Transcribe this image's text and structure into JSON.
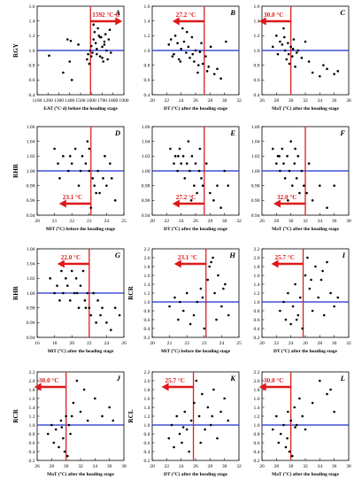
{
  "colors": {
    "threshold_line": "#d92020",
    "reference_line": "#1a2ccc",
    "arrow": "#e01818",
    "annotation_text": "#e01818",
    "points": "#000000",
    "axis": "#000000"
  },
  "chart_data": [
    {
      "panel": "A",
      "type": "scatter",
      "xlabel": "EAT (°C·d) before the heading stage",
      "ylabel": "RGY",
      "xlim": [
        1100,
        1900
      ],
      "ylim": [
        0.4,
        1.6
      ],
      "xticks": [
        1100,
        1200,
        1300,
        1400,
        1500,
        1600,
        1700,
        1800,
        1900
      ],
      "yticks": [
        0.4,
        0.6,
        0.8,
        1.0,
        1.2,
        1.4,
        1.6
      ],
      "hline": 1.0,
      "vline": 1592,
      "annotation": "1592 °C·d",
      "arrow_direction": "right",
      "x": [
        1210,
        1340,
        1380,
        1400,
        1410,
        1420,
        1480,
        1560,
        1570,
        1580,
        1590,
        1600,
        1610,
        1620,
        1630,
        1640,
        1650,
        1660,
        1670,
        1680,
        1690,
        1700,
        1710,
        1720,
        1730,
        1740,
        1750,
        1760,
        1770,
        1780,
        1600,
        1620,
        1650,
        1700,
        1720,
        1680
      ],
      "y": [
        0.93,
        0.7,
        1.15,
        0.85,
        1.13,
        0.6,
        1.08,
        0.88,
        0.95,
        0.82,
        1.0,
        1.06,
        0.97,
        1.15,
        1.25,
        1.1,
        0.95,
        1.3,
        1.2,
        0.92,
        1.18,
        1.05,
        0.85,
        1.12,
        1.22,
        1.0,
        0.88,
        1.15,
        1.28,
        0.97,
        0.92,
        1.35,
        1.02,
        0.9,
        1.08,
        1.18
      ]
    },
    {
      "panel": "B",
      "type": "scatter",
      "xlabel": "DT (°C) after the heading stage",
      "ylabel": "",
      "xlim": [
        20,
        32
      ],
      "ylim": [
        0.4,
        1.6
      ],
      "xticks": [
        20,
        22,
        24,
        26,
        28,
        30,
        32
      ],
      "yticks": [
        0.4,
        0.6,
        0.8,
        1.0,
        1.2,
        1.4,
        1.6
      ],
      "hline": 1.0,
      "vline": 27.2,
      "annotation": "27.2 °C",
      "arrow_direction": "left",
      "x": [
        22.3,
        22.6,
        23.0,
        23.2,
        23.5,
        23.7,
        24.0,
        24.2,
        24.4,
        24.7,
        25.0,
        25.2,
        25.5,
        25.8,
        26.0,
        26.3,
        26.6,
        26.8,
        27.0,
        27.4,
        27.8,
        28.1,
        28.6,
        29.0,
        29.5,
        30.2,
        22.8,
        23.9,
        24.8,
        25.6,
        26.4,
        27.6
      ],
      "y": [
        1.08,
        1.15,
        0.95,
        1.2,
        1.1,
        0.88,
        1.02,
        1.3,
        1.12,
        0.97,
        1.05,
        0.9,
        1.18,
        0.85,
        1.0,
        0.7,
        0.98,
        1.1,
        0.82,
        0.92,
        0.78,
        1.05,
        0.68,
        0.75,
        0.62,
        1.12,
        0.92,
        0.85,
        1.25,
        0.95,
        0.8,
        0.72
      ]
    },
    {
      "panel": "C",
      "type": "scatter",
      "xlabel": "MaT (°C) after the heading stage",
      "ylabel": "",
      "xlim": [
        26,
        38
      ],
      "ylim": [
        0.4,
        1.6
      ],
      "xticks": [
        26,
        28,
        30,
        32,
        34,
        36,
        38
      ],
      "yticks": [
        0.4,
        0.6,
        0.8,
        1.0,
        1.2,
        1.4,
        1.6
      ],
      "hline": 1.0,
      "vline": 30.0,
      "annotation": "30.0 °C",
      "arrow_direction": "left",
      "x": [
        27.5,
        28.0,
        28.2,
        28.5,
        28.8,
        29.0,
        29.2,
        29.4,
        29.6,
        29.8,
        30.0,
        30.2,
        30.4,
        30.6,
        30.8,
        31.0,
        31.5,
        32.0,
        32.5,
        33.0,
        34.0,
        34.5,
        35.0,
        36.0,
        36.5,
        29.1,
        29.7,
        30.3
      ],
      "y": [
        1.05,
        1.2,
        0.95,
        1.12,
        1.08,
        1.3,
        1.0,
        0.88,
        1.1,
        0.82,
        1.05,
        0.92,
        1.15,
        0.78,
        0.97,
        1.0,
        0.9,
        1.12,
        0.85,
        0.7,
        0.65,
        0.8,
        0.75,
        0.68,
        0.72,
        1.18,
        0.95,
        1.02
      ]
    },
    {
      "panel": "D",
      "type": "scatter",
      "xlabel": "MiT (°C) before the heading stage",
      "ylabel": "RHR",
      "xlim": [
        20,
        25
      ],
      "ylim": [
        0.94,
        1.06
      ],
      "xticks": [
        20,
        21,
        22,
        23,
        24,
        25
      ],
      "yticks": [
        0.94,
        0.96,
        0.98,
        1.0,
        1.02,
        1.04,
        1.06
      ],
      "hline": 1.0,
      "vline": 23.1,
      "annotation": "23.1 °C",
      "arrow_direction": "left",
      "x": [
        21.0,
        21.2,
        21.5,
        21.8,
        22.0,
        22.2,
        22.5,
        22.6,
        22.8,
        22.9,
        23.0,
        23.0,
        23.2,
        23.3,
        23.5,
        23.6,
        23.8,
        24.0,
        24.2,
        24.5,
        21.3,
        21.9,
        22.4,
        23.1,
        23.4,
        23.9,
        24.3
      ],
      "y": [
        1.03,
        1.01,
        1.02,
        1.0,
        1.01,
        1.03,
        1.0,
        1.02,
        1.01,
        1.04,
        1.0,
        1.03,
        0.99,
        0.98,
        1.0,
        0.97,
        0.99,
        0.98,
        1.01,
        0.96,
        0.99,
        1.02,
        0.98,
        0.95,
        0.97,
        1.02,
        0.99
      ]
    },
    {
      "panel": "E",
      "type": "scatter",
      "xlabel": "DT (°C) after the heading stage",
      "ylabel": "",
      "xlim": [
        20,
        32
      ],
      "ylim": [
        0.94,
        1.06
      ],
      "xticks": [
        20,
        22,
        24,
        26,
        28,
        30,
        32
      ],
      "yticks": [
        0.94,
        0.96,
        0.98,
        1.0,
        1.02,
        1.04,
        1.06
      ],
      "hline": 1.0,
      "vline": 27.2,
      "annotation": "27.2 °C",
      "arrow_direction": "left",
      "x": [
        22.5,
        23.0,
        23.2,
        23.5,
        23.8,
        24.0,
        24.3,
        24.5,
        24.8,
        25.0,
        25.2,
        25.5,
        25.8,
        26.0,
        26.2,
        26.5,
        26.8,
        27.0,
        27.5,
        28.0,
        28.5,
        29.0,
        29.5,
        30.0,
        30.5,
        23.6,
        25.4,
        26.6
      ],
      "y": [
        1.03,
        1.01,
        1.02,
        1.0,
        1.03,
        1.01,
        1.02,
        0.99,
        1.01,
        1.04,
        1.0,
        1.02,
        0.98,
        1.01,
        0.97,
        1.0,
        0.99,
        0.98,
        1.01,
        0.97,
        0.96,
        0.98,
        0.95,
        1.0,
        0.98,
        1.02,
        0.96,
        1.03
      ]
    },
    {
      "panel": "F",
      "type": "scatter",
      "xlabel": "MaT (°C) after the heading stage",
      "ylabel": "",
      "xlim": [
        26,
        38
      ],
      "ylim": [
        0.94,
        1.06
      ],
      "xticks": [
        26,
        28,
        30,
        32,
        34,
        36,
        38
      ],
      "yticks": [
        0.94,
        0.96,
        0.98,
        1.0,
        1.02,
        1.04,
        1.06
      ],
      "hline": 1.0,
      "vline": 32.0,
      "annotation": "32.0 °C",
      "arrow_direction": "left",
      "x": [
        27.5,
        28.0,
        28.2,
        28.5,
        28.8,
        29.0,
        29.2,
        29.5,
        29.8,
        30.0,
        30.2,
        30.5,
        30.8,
        31.0,
        31.2,
        31.5,
        31.8,
        32.2,
        32.5,
        33.0,
        34.0,
        35.0,
        36.0,
        28.4,
        29.6,
        30.6
      ],
      "y": [
        1.03,
        1.01,
        1.02,
        1.0,
        1.03,
        1.01,
        0.99,
        1.02,
        1.0,
        1.04,
        0.98,
        1.01,
        0.99,
        1.02,
        0.97,
        1.0,
        0.98,
        0.97,
        1.01,
        0.96,
        0.98,
        0.95,
        0.98,
        1.02,
        0.96,
        1.03
      ]
    },
    {
      "panel": "G",
      "type": "scatter",
      "xlabel": "MiT (°C) after the heading stage",
      "ylabel": "RHR",
      "xlim": [
        16,
        26
      ],
      "ylim": [
        0.94,
        1.06
      ],
      "xticks": [
        16,
        18,
        20,
        22,
        24,
        26
      ],
      "yticks": [
        0.94,
        0.96,
        0.98,
        1.0,
        1.02,
        1.04,
        1.06
      ],
      "hline": 1.0,
      "vline": 22.0,
      "annotation": "22.0 °C",
      "arrow_direction": "left",
      "x": [
        17.5,
        18.0,
        18.3,
        18.8,
        19.0,
        19.3,
        19.5,
        19.8,
        20.0,
        20.3,
        20.5,
        20.8,
        21.0,
        21.3,
        21.5,
        21.8,
        22.0,
        22.2,
        22.5,
        22.8,
        23.0,
        23.3,
        23.5,
        24.0,
        24.5,
        25.0,
        25.5,
        18.6,
        20.6,
        21.6
      ],
      "y": [
        1.02,
        1.0,
        1.01,
        1.03,
        1.0,
        1.02,
        1.01,
        0.99,
        1.03,
        1.0,
        1.02,
        0.98,
        1.01,
        1.03,
        0.99,
        1.0,
        0.98,
        0.97,
        1.0,
        0.96,
        0.99,
        0.97,
        0.98,
        0.96,
        0.95,
        0.98,
        0.97,
        0.99,
        1.0,
        0.98
      ]
    },
    {
      "panel": "H",
      "type": "scatter",
      "xlabel": "MiT (°C) before the heading stage",
      "ylabel": "RCR",
      "xlim": [
        20,
        25
      ],
      "ylim": [
        0.2,
        2.2
      ],
      "xticks": [
        20,
        21,
        22,
        23,
        24,
        25
      ],
      "yticks": [
        0.2,
        0.4,
        0.6,
        0.8,
        1.0,
        1.2,
        1.4,
        1.6,
        1.8,
        2.0,
        2.2
      ],
      "hline": 1.0,
      "vline": 23.1,
      "annotation": "23.1 °C",
      "arrow_direction": "left",
      "x": [
        21.0,
        21.3,
        21.5,
        21.8,
        22.0,
        22.2,
        22.4,
        22.6,
        22.8,
        23.0,
        23.2,
        23.3,
        23.5,
        23.6,
        23.8,
        24.0,
        24.2,
        24.4,
        22.9,
        23.4,
        21.6,
        23.7,
        24.1
      ],
      "y": [
        0.9,
        1.1,
        0.6,
        0.8,
        1.2,
        0.5,
        0.7,
        1.0,
        1.3,
        0.4,
        1.5,
        1.8,
        2.0,
        1.2,
        1.6,
        0.9,
        1.4,
        0.7,
        1.1,
        1.9,
        1.0,
        0.6,
        1.3
      ]
    },
    {
      "panel": "I",
      "type": "scatter",
      "xlabel": "DT (°C) after the heading stage",
      "ylabel": "",
      "xlim": [
        20,
        32
      ],
      "ylim": [
        0.2,
        2.2
      ],
      "xticks": [
        20,
        22,
        24,
        26,
        28,
        30,
        32
      ],
      "yticks": [
        0.2,
        0.4,
        0.6,
        0.8,
        1.0,
        1.2,
        1.4,
        1.6,
        1.8,
        2.0,
        2.2
      ],
      "hline": 1.0,
      "vline": 25.7,
      "annotation": "25.7 °C",
      "arrow_direction": "left",
      "x": [
        22.5,
        23.0,
        23.3,
        23.6,
        24.0,
        24.3,
        24.6,
        25.0,
        25.3,
        25.6,
        26.0,
        26.3,
        26.6,
        27.0,
        27.4,
        27.8,
        28.2,
        28.6,
        29.0,
        29.5,
        30.0,
        30.5,
        24.8,
        26.8,
        28.4
      ],
      "y": [
        0.8,
        1.0,
        0.6,
        1.2,
        0.5,
        0.9,
        1.4,
        0.7,
        1.1,
        0.4,
        1.6,
        2.0,
        1.3,
        0.8,
        1.8,
        1.1,
        1.5,
        0.7,
        1.9,
        1.2,
        0.9,
        1.1,
        0.6,
        1.5,
        1.7
      ]
    },
    {
      "panel": "J",
      "type": "scatter",
      "xlabel": "MaT (°C) after the heading stage",
      "ylabel": "RCR",
      "xlim": [
        26,
        38
      ],
      "ylim": [
        0.2,
        2.2
      ],
      "xticks": [
        26,
        28,
        30,
        32,
        34,
        36,
        38
      ],
      "yticks": [
        0.2,
        0.4,
        0.6,
        0.8,
        1.0,
        1.2,
        1.4,
        1.6,
        1.8,
        2.0,
        2.2
      ],
      "hline": 1.0,
      "vline": 30.0,
      "annotation": "30.0 °C",
      "arrow_direction": "left",
      "x": [
        27.5,
        28.0,
        28.3,
        28.6,
        29.0,
        29.3,
        29.6,
        29.8,
        30.0,
        30.2,
        30.4,
        30.6,
        31.0,
        31.5,
        32.0,
        32.5,
        33.0,
        34.0,
        35.0,
        36.0,
        36.5,
        29.4,
        30.8
      ],
      "y": [
        0.8,
        1.0,
        0.6,
        0.9,
        0.5,
        1.1,
        0.7,
        0.4,
        1.2,
        0.3,
        1.0,
        0.8,
        1.5,
        2.0,
        1.3,
        1.8,
        1.1,
        1.6,
        1.2,
        1.4,
        1.1,
        0.95,
        1.2
      ]
    },
    {
      "panel": "K",
      "type": "scatter",
      "xlabel": "DT (°C) after the heading stage",
      "ylabel": "RCL",
      "xlim": [
        20,
        32
      ],
      "ylim": [
        0.2,
        2.2
      ],
      "xticks": [
        20,
        22,
        24,
        26,
        28,
        30,
        32
      ],
      "yticks": [
        0.2,
        0.4,
        0.6,
        0.8,
        1.0,
        1.2,
        1.4,
        1.6,
        1.8,
        2.0,
        2.2
      ],
      "hline": 1.0,
      "vline": 25.7,
      "annotation": "25.7 °C",
      "arrow_direction": "left",
      "x": [
        22.3,
        22.7,
        23.0,
        23.4,
        23.8,
        24.1,
        24.5,
        24.8,
        25.1,
        25.4,
        25.8,
        26.1,
        26.5,
        26.9,
        27.3,
        27.7,
        28.1,
        28.5,
        29.0,
        29.5,
        30.0,
        30.5,
        24.3,
        26.7,
        28.3
      ],
      "y": [
        0.7,
        1.0,
        0.5,
        1.2,
        0.8,
        0.6,
        1.3,
        0.9,
        0.4,
        1.1,
        1.5,
        2.0,
        1.2,
        1.7,
        0.9,
        1.4,
        1.0,
        1.8,
        0.7,
        1.3,
        1.6,
        1.1,
        0.95,
        0.6,
        1.2
      ]
    },
    {
      "panel": "L",
      "type": "scatter",
      "xlabel": "MaT (°C) after the heading stage",
      "ylabel": "",
      "xlim": [
        26,
        38
      ],
      "ylim": [
        0.2,
        2.2
      ],
      "xticks": [
        26,
        28,
        30,
        32,
        34,
        36,
        38
      ],
      "yticks": [
        0.2,
        0.4,
        0.6,
        0.8,
        1.0,
        1.2,
        1.4,
        1.6,
        1.8,
        2.0,
        2.2
      ],
      "hline": 1.0,
      "vline": 30.0,
      "annotation": "30.0 °C",
      "arrow_direction": "left",
      "x": [
        27.5,
        28.0,
        28.3,
        28.6,
        29.0,
        29.3,
        29.6,
        29.8,
        30.0,
        30.2,
        30.5,
        30.8,
        31.2,
        31.6,
        32.0,
        33.0,
        34.0,
        35.0,
        35.5,
        36.0,
        29.5,
        30.6
      ],
      "y": [
        0.9,
        1.2,
        0.6,
        0.8,
        1.0,
        0.5,
        1.3,
        0.4,
        1.1,
        0.3,
        1.4,
        1.0,
        1.6,
        1.2,
        0.9,
        1.5,
        2.0,
        1.7,
        1.8,
        1.3,
        0.7,
        0.95
      ]
    }
  ]
}
